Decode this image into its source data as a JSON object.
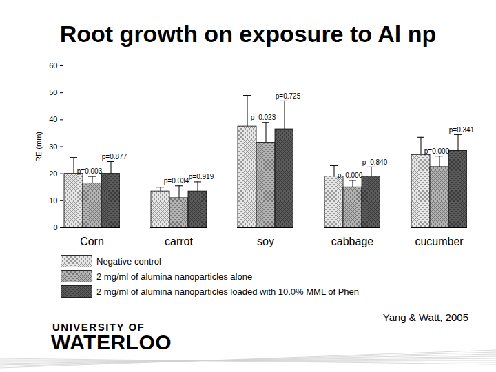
{
  "chart_data": {
    "type": "bar",
    "title": "Root growth on exposure to Al np",
    "y_label": "RE (mm)",
    "categories": [
      "Corn",
      "carrot",
      "soy",
      "cabbage",
      "cucumber"
    ],
    "series": [
      {
        "name": "Negative control",
        "color": "#e6e6e6",
        "values": [
          20,
          13.5,
          37.5,
          19,
          27
        ],
        "errors": [
          6,
          1.5,
          11.5,
          4,
          6.5
        ]
      },
      {
        "name": "2 mg/ml of alumina nanoparticles alone",
        "color": "#b3b3b3",
        "values": [
          16.5,
          11,
          31.5,
          15,
          22.5
        ],
        "errors": [
          2.5,
          4.5,
          7.5,
          2.5,
          4
        ],
        "p_values": [
          "p=0.003",
          "p=0.034",
          "p=0.023",
          "p=0.000",
          "p=0.000"
        ]
      },
      {
        "name": "2 mg/ml of alumina nanoparticles loaded with 10.0% MML of Phen",
        "color": "#5a5a5a",
        "values": [
          20,
          13.5,
          36.5,
          19,
          28.5
        ],
        "errors": [
          4.5,
          3.5,
          10.5,
          3.5,
          6
        ],
        "p_values": [
          "p=0.877",
          "p=0.919",
          "p=0.725",
          "p=0.840",
          "p=0.341"
        ]
      }
    ],
    "ylim": [
      0,
      60
    ],
    "yticks": [
      0,
      10,
      20,
      30,
      40,
      50,
      60
    ],
    "grid": false,
    "legend": "bottom",
    "source": "Yang & Watt, 2005",
    "logo": [
      "UNIVERSITY OF",
      "WATERLOO"
    ]
  }
}
